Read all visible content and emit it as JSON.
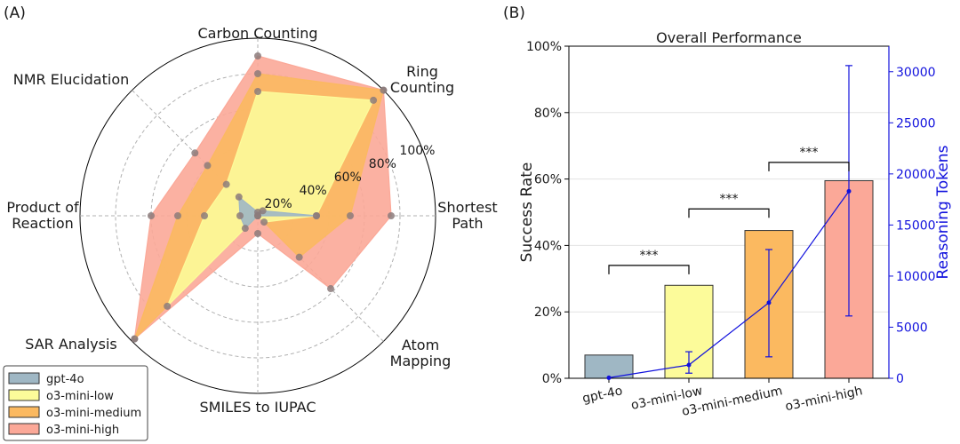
{
  "panel_a_label": "(A)",
  "panel_b_label": "(B)",
  "colors": {
    "gpt-4o": "#9fb7c4",
    "o3-mini-low": "#fcfb9a",
    "o3-mini-medium": "#fbb960",
    "o3-mini-high": "#fba898",
    "tokens": "#1111dd"
  },
  "chart_data": [
    {
      "type": "radar",
      "title": "",
      "axes": [
        "Carbon Counting",
        "Ring\nCounting",
        "Shortest\nPath",
        "Atom\nMapping",
        "SMILES to IUPAC",
        "SAR Analysis",
        "Product of\nReaction",
        "NMR Elucidation"
      ],
      "radial_ticks": [
        0.2,
        0.4,
        0.6,
        0.8,
        1.0
      ],
      "radial_tick_labels": [
        "20%",
        "40%",
        "60%",
        "80%",
        "100%"
      ],
      "series": [
        {
          "name": "o3-mini-high",
          "values": [
            0.9,
            1.0,
            0.75,
            0.58,
            0.1,
            0.98,
            0.6,
            0.5
          ]
        },
        {
          "name": "o3-mini-medium",
          "values": [
            0.8,
            1.0,
            0.52,
            0.33,
            0.0,
            0.98,
            0.45,
            0.4
          ]
        },
        {
          "name": "o3-mini-low",
          "values": [
            0.7,
            0.92,
            0.33,
            0.05,
            0.0,
            0.72,
            0.3,
            0.25
          ]
        },
        {
          "name": "gpt-4o",
          "values": [
            0.02,
            0.04,
            0.33,
            0.0,
            0.0,
            0.1,
            0.1,
            0.15
          ]
        }
      ],
      "legend": [
        "gpt-4o",
        "o3-mini-low",
        "o3-mini-medium",
        "o3-mini-high"
      ],
      "legend_position": "bottom-left"
    },
    {
      "type": "bar",
      "title": "Overall Performance",
      "categories": [
        "gpt-4o",
        "o3-mini-low",
        "o3-mini-medium",
        "o3-mini-high"
      ],
      "values": [
        7,
        28,
        44.5,
        59.5
      ],
      "ylabel": "Success Rate",
      "ylim": [
        0,
        100
      ],
      "yticks": [
        "0%",
        "20%",
        "40%",
        "60%",
        "80%",
        "100%"
      ],
      "secondary": {
        "type": "line",
        "ylabel": "Reasoning Tokens",
        "ylim": [
          0,
          32500
        ],
        "yticks": [
          0,
          5000,
          10000,
          15000,
          20000,
          25000,
          30000
        ],
        "values": [
          50,
          1300,
          7400,
          18300
        ],
        "error_low": [
          0,
          500,
          2100,
          6100
        ],
        "error_high": [
          0,
          2600,
          12600,
          30600
        ]
      },
      "significance": [
        {
          "from": 0,
          "to": 1,
          "label": "***",
          "level": 34
        },
        {
          "from": 1,
          "to": 2,
          "label": "***",
          "level": 51
        },
        {
          "from": 2,
          "to": 3,
          "label": "***",
          "level": 65
        }
      ]
    }
  ]
}
